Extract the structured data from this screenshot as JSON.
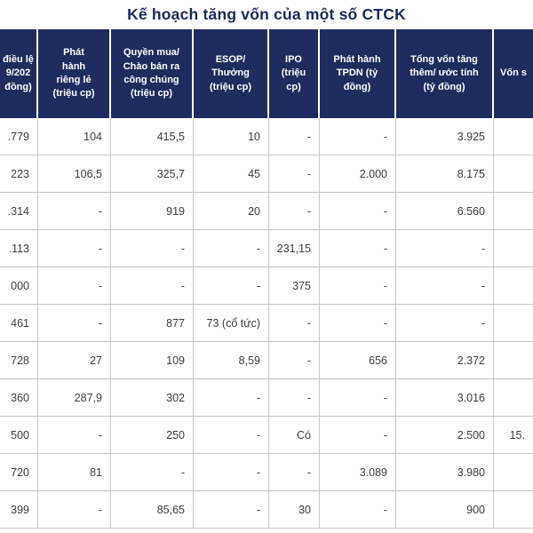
{
  "title": "Kế hoạch tăng vốn của một số CTCK",
  "colors": {
    "header_bg": "#1f2c5f",
    "title_text": "#1b2a57",
    "body_text": "#3d3d3d",
    "grid_line": "#c6c6c6"
  },
  "chart_data": {
    "type": "table",
    "title": "Kế hoạch tăng vốn của một số CTCK",
    "columns": [
      "điều lệ\n9/202\nđồng)",
      "Phát\nhành\nriêng lẻ\n(triệu cp)",
      "Quyền mua/\nChào bán ra\ncông chúng\n(triệu cp)",
      "ESOP/\nThưởng\n(triệu cp)",
      "IPO\n(triệu\ncp)",
      "Phát hành\nTPDN (tỷ\nđồng)",
      "Tổng vốn tăng\nthêm/ ước tính\n(tỷ đồng)",
      "Vốn s"
    ],
    "rows": [
      [
        ".779",
        "104",
        "415,5",
        "10",
        "-",
        "-",
        "3.925",
        ""
      ],
      [
        "223",
        "106,5",
        "325,7",
        "45",
        "-",
        "2.000",
        "8.175",
        ""
      ],
      [
        ".314",
        "-",
        "919",
        "20",
        "-",
        "-",
        "6.560",
        ""
      ],
      [
        ".113",
        "-",
        "-",
        "-",
        "231,15",
        "-",
        "-",
        ""
      ],
      [
        "000",
        "-",
        "-",
        "-",
        "375",
        "-",
        "-",
        ""
      ],
      [
        "461",
        "-",
        "877",
        "73 (cổ tức)",
        "-",
        "-",
        "-",
        ""
      ],
      [
        "728",
        "27",
        "109",
        "8,59",
        "-",
        "656",
        "2.372",
        ""
      ],
      [
        "360",
        "287,9",
        "302",
        "-",
        "-",
        "-",
        "3.016",
        ""
      ],
      [
        "500",
        "-",
        "250",
        "-",
        "Có",
        "-",
        "2.500",
        "15."
      ],
      [
        "720",
        "81",
        "-",
        "-",
        "-",
        "3.089",
        "3.980",
        ""
      ],
      [
        "399",
        "-",
        "85,65",
        "-",
        "30",
        "-",
        "900",
        ""
      ]
    ]
  }
}
